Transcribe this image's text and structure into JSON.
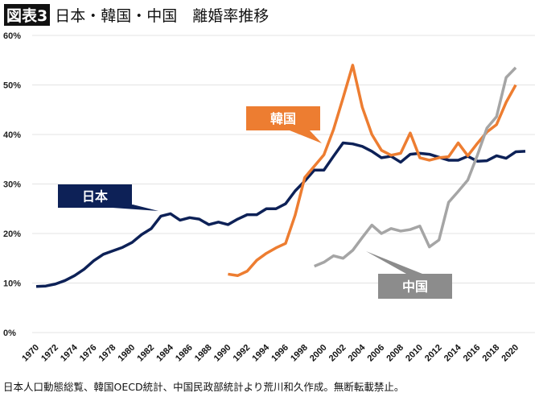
{
  "header": {
    "badge": "図表3",
    "title": "日本・韓国・中国　離婚率推移"
  },
  "source": "日本人口動態総覧、韓国OECD統計、中国民政部統計より荒川和久作成。無断転載禁止。",
  "chart_data": {
    "type": "line",
    "ylim": [
      0,
      60
    ],
    "yticks": [
      "0%",
      "10%",
      "20%",
      "30%",
      "40%",
      "50%",
      "60%"
    ],
    "xlim": [
      1970,
      2021
    ],
    "xticks": [
      "1970",
      "1972",
      "1974",
      "1976",
      "1978",
      "1980",
      "1982",
      "1984",
      "1986",
      "1988",
      "1990",
      "1992",
      "1994",
      "1996",
      "1998",
      "2000",
      "2002",
      "2004",
      "2006",
      "2008",
      "2010",
      "2012",
      "2014",
      "2016",
      "2018",
      "2020"
    ],
    "grid": true,
    "series": [
      {
        "name": "日本",
        "color": "#0d2157",
        "start": 1970,
        "values": [
          9.3,
          9.4,
          9.8,
          10.5,
          11.5,
          12.8,
          14.5,
          15.8,
          16.5,
          17.2,
          18.2,
          19.8,
          21.0,
          23.5,
          24.0,
          22.7,
          23.2,
          22.9,
          21.8,
          22.3,
          21.8,
          22.9,
          23.8,
          23.8,
          25.0,
          25.0,
          26.0,
          28.6,
          30.6,
          32.8,
          32.8,
          35.6,
          38.3,
          38.1,
          37.6,
          36.6,
          35.3,
          35.6,
          34.4,
          36.0,
          36.2,
          36.0,
          35.4,
          34.8,
          34.8,
          35.6,
          34.6,
          34.7,
          35.7,
          35.2,
          36.5,
          36.6
        ]
      },
      {
        "name": "韓国",
        "color": "#ed7d31",
        "start": 1990,
        "values": [
          11.8,
          11.5,
          12.4,
          14.6,
          16.0,
          17.1,
          18.0,
          23.7,
          31.3,
          33.6,
          35.9,
          41.0,
          47.4,
          54.0,
          45.5,
          40.0,
          36.8,
          35.8,
          36.2,
          40.3,
          35.3,
          34.8,
          35.3,
          35.5,
          38.3,
          35.7,
          38.2,
          40.5,
          42.0,
          46.5,
          50.0
        ]
      },
      {
        "name": "中国",
        "color": "#a5a5a5",
        "start": 1999,
        "values": [
          13.4,
          14.2,
          15.5,
          15.0,
          16.6,
          19.2,
          21.7,
          20.0,
          21.0,
          20.5,
          20.8,
          21.5,
          17.3,
          18.7,
          26.3,
          28.5,
          30.8,
          35.8,
          41.3,
          43.6,
          51.5,
          53.5
        ]
      }
    ],
    "callout_colors": {
      "日本": "#0d2157",
      "韓国": "#ed7d31",
      "中国": "#8c8c8c"
    }
  }
}
